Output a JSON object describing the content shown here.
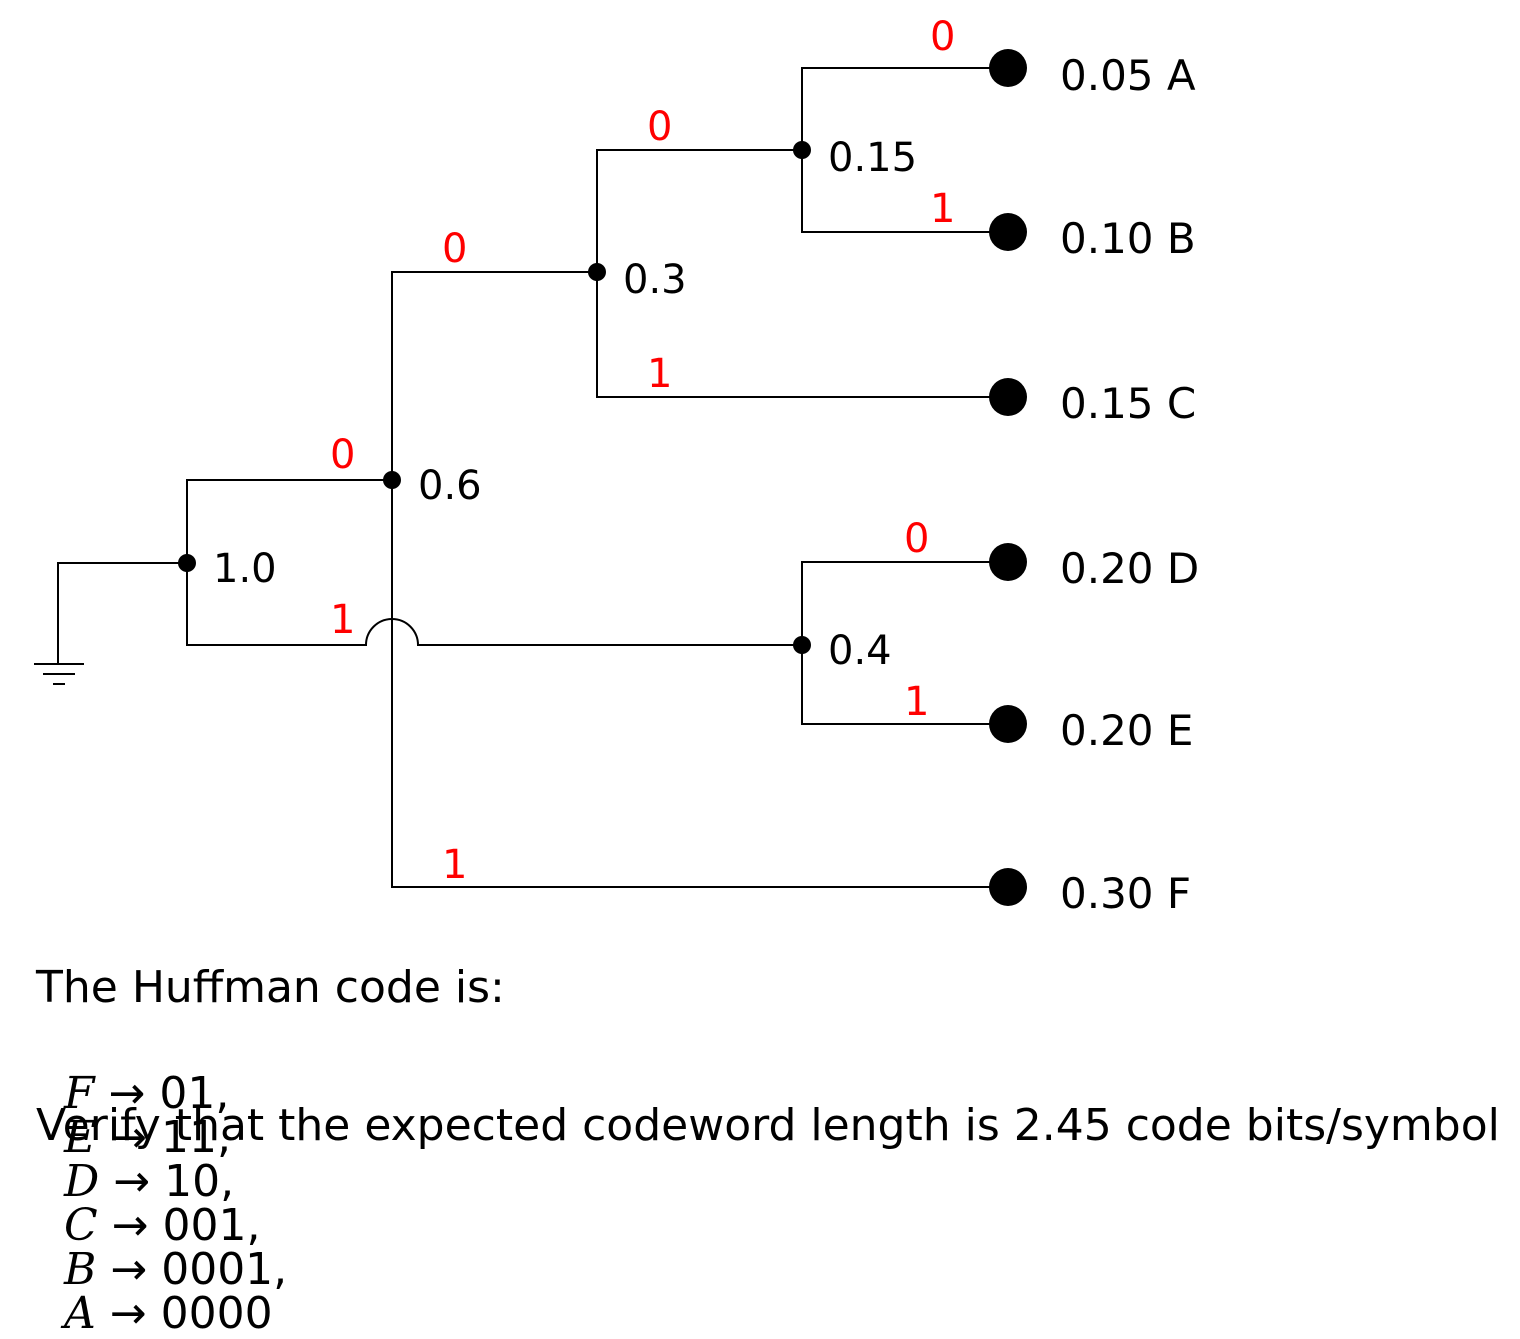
{
  "tree": {
    "nodes": {
      "root": "1.0",
      "n06": "0.6",
      "n03": "0.3",
      "n015": "0.15",
      "n04": "0.4"
    },
    "leaves": {
      "A": "0.05 A",
      "B": "0.10 B",
      "C": "0.15 C",
      "D": "0.20 D",
      "E": "0.20 E",
      "F": "0.30 F"
    },
    "bits": {
      "root_to_06": "0",
      "root_to_04": "1",
      "n06_to_03": "0",
      "n06_to_F": "1",
      "n03_to_015": "0",
      "n03_to_C": "1",
      "n015_to_A": "0",
      "n015_to_B": "1",
      "n04_to_D": "0",
      "n04_to_E": "1"
    }
  },
  "caption": {
    "title": "The Huffman code is:",
    "codes": [
      {
        "symbol": "F",
        "arrow": "→",
        "code": "01,"
      },
      {
        "symbol": "E",
        "arrow": "→",
        "code": "11,"
      },
      {
        "symbol": "D",
        "arrow": "→",
        "code": "10,"
      },
      {
        "symbol": "C",
        "arrow": "→",
        "code": "001,"
      },
      {
        "symbol": "B",
        "arrow": "→",
        "code": "0001,"
      },
      {
        "symbol": "A",
        "arrow": "→",
        "code": "0000"
      }
    ],
    "verify": "Verify that the expected codeword length is 2.45 code bits/symbol"
  },
  "colors": {
    "bit_label": "#ff0000",
    "line": "#000000"
  }
}
